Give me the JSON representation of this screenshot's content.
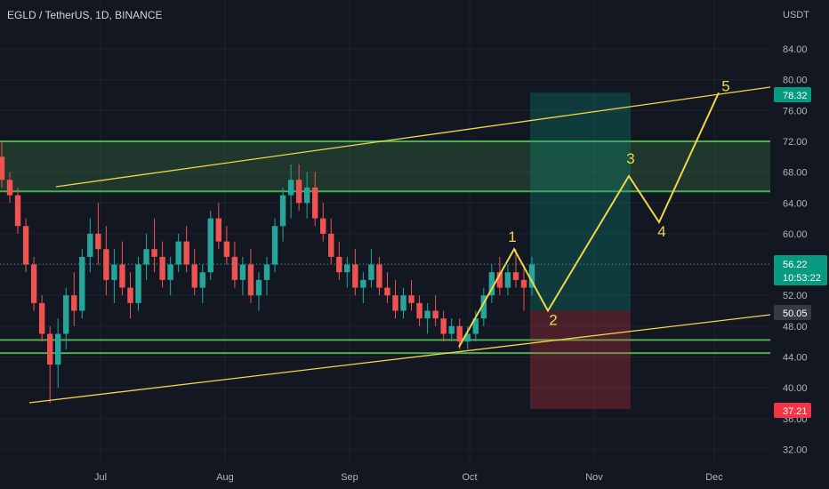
{
  "header": {
    "title": "EGLD / TetherUS, 1D, BINANCE"
  },
  "price_axis": {
    "currency": "USDT",
    "ticks": [
      "84.00",
      "80.00",
      "76.00",
      "72.00",
      "68.00",
      "64.00",
      "60.00",
      "56.00",
      "52.00",
      "48.00",
      "44.00",
      "40.00",
      "36.00",
      "32.00"
    ]
  },
  "time_axis": {
    "ticks": [
      "Jul",
      "Aug",
      "Sep",
      "Oct",
      "Nov",
      "Dec"
    ]
  },
  "price_tags": {
    "target": {
      "value": "78.32",
      "color": "#089981"
    },
    "current": {
      "value": "56.22",
      "countdown": "10:53:22",
      "color": "#089981"
    },
    "entry": {
      "value": "50.05",
      "color": "#363a45"
    },
    "stop": {
      "value": "37.21",
      "color": "#f23645"
    }
  },
  "colors": {
    "up": "#26a69a",
    "down": "#ef5350",
    "trendline": "#f0d64a",
    "zone": "#4caf50",
    "background": "#131722"
  },
  "chart_data": {
    "type": "candlestick",
    "symbol": "EGLD / TetherUS",
    "interval": "1D",
    "exchange": "BINANCE",
    "ylim": [
      30,
      88
    ],
    "ohlc_approx": [
      {
        "o": 70,
        "h": 72,
        "l": 66,
        "c": 67
      },
      {
        "o": 67,
        "h": 68,
        "l": 64,
        "c": 65
      },
      {
        "o": 65,
        "h": 66,
        "l": 60,
        "c": 61
      },
      {
        "o": 61,
        "h": 62,
        "l": 55,
        "c": 56
      },
      {
        "o": 56,
        "h": 57,
        "l": 50,
        "c": 51
      },
      {
        "o": 51,
        "h": 52,
        "l": 46,
        "c": 47
      },
      {
        "o": 47,
        "h": 48,
        "l": 38,
        "c": 43
      },
      {
        "o": 43,
        "h": 49,
        "l": 40,
        "c": 47
      },
      {
        "o": 47,
        "h": 53,
        "l": 45,
        "c": 52
      },
      {
        "o": 52,
        "h": 55,
        "l": 48,
        "c": 50
      },
      {
        "o": 50,
        "h": 58,
        "l": 49,
        "c": 57
      },
      {
        "o": 57,
        "h": 62,
        "l": 55,
        "c": 60
      },
      {
        "o": 60,
        "h": 64,
        "l": 56,
        "c": 58
      },
      {
        "o": 58,
        "h": 61,
        "l": 52,
        "c": 54
      },
      {
        "o": 54,
        "h": 58,
        "l": 51,
        "c": 56
      },
      {
        "o": 56,
        "h": 59,
        "l": 52,
        "c": 53
      },
      {
        "o": 53,
        "h": 55,
        "l": 49,
        "c": 51
      },
      {
        "o": 51,
        "h": 57,
        "l": 50,
        "c": 56
      },
      {
        "o": 56,
        "h": 60,
        "l": 54,
        "c": 58
      },
      {
        "o": 58,
        "h": 62,
        "l": 55,
        "c": 57
      },
      {
        "o": 57,
        "h": 59,
        "l": 53,
        "c": 54
      },
      {
        "o": 54,
        "h": 57,
        "l": 52,
        "c": 56
      },
      {
        "o": 56,
        "h": 60,
        "l": 55,
        "c": 59
      },
      {
        "o": 59,
        "h": 61,
        "l": 55,
        "c": 56
      },
      {
        "o": 56,
        "h": 58,
        "l": 52,
        "c": 53
      },
      {
        "o": 53,
        "h": 56,
        "l": 51,
        "c": 55
      },
      {
        "o": 55,
        "h": 63,
        "l": 54,
        "c": 62
      },
      {
        "o": 62,
        "h": 64,
        "l": 58,
        "c": 59
      },
      {
        "o": 59,
        "h": 61,
        "l": 56,
        "c": 57
      },
      {
        "o": 57,
        "h": 59,
        "l": 53,
        "c": 54
      },
      {
        "o": 54,
        "h": 57,
        "l": 52,
        "c": 56
      },
      {
        "o": 56,
        "h": 58,
        "l": 51,
        "c": 52
      },
      {
        "o": 52,
        "h": 55,
        "l": 50,
        "c": 54
      },
      {
        "o": 54,
        "h": 57,
        "l": 52,
        "c": 56
      },
      {
        "o": 56,
        "h": 62,
        "l": 55,
        "c": 61
      },
      {
        "o": 61,
        "h": 66,
        "l": 59,
        "c": 65
      },
      {
        "o": 65,
        "h": 69,
        "l": 62,
        "c": 67
      },
      {
        "o": 67,
        "h": 69,
        "l": 63,
        "c": 64
      },
      {
        "o": 64,
        "h": 68,
        "l": 62,
        "c": 66
      },
      {
        "o": 66,
        "h": 68,
        "l": 61,
        "c": 62
      },
      {
        "o": 62,
        "h": 64,
        "l": 59,
        "c": 60
      },
      {
        "o": 60,
        "h": 62,
        "l": 56,
        "c": 57
      },
      {
        "o": 57,
        "h": 59,
        "l": 54,
        "c": 55
      },
      {
        "o": 55,
        "h": 57,
        "l": 53,
        "c": 56
      },
      {
        "o": 56,
        "h": 58,
        "l": 52,
        "c": 53
      },
      {
        "o": 53,
        "h": 55,
        "l": 51,
        "c": 54
      },
      {
        "o": 54,
        "h": 58,
        "l": 53,
        "c": 56
      },
      {
        "o": 56,
        "h": 57,
        "l": 52,
        "c": 53
      },
      {
        "o": 53,
        "h": 55,
        "l": 51,
        "c": 52
      },
      {
        "o": 52,
        "h": 54,
        "l": 49,
        "c": 50
      },
      {
        "o": 50,
        "h": 53,
        "l": 49,
        "c": 52
      },
      {
        "o": 52,
        "h": 54,
        "l": 50,
        "c": 51
      },
      {
        "o": 51,
        "h": 52,
        "l": 48,
        "c": 49
      },
      {
        "o": 49,
        "h": 51,
        "l": 47,
        "c": 50
      },
      {
        "o": 50,
        "h": 52,
        "l": 48,
        "c": 49
      },
      {
        "o": 49,
        "h": 50,
        "l": 46,
        "c": 47
      },
      {
        "o": 47,
        "h": 49,
        "l": 46,
        "c": 48
      },
      {
        "o": 48,
        "h": 49,
        "l": 45,
        "c": 46
      },
      {
        "o": 46,
        "h": 48,
        "l": 45,
        "c": 47
      },
      {
        "o": 47,
        "h": 50,
        "l": 46,
        "c": 49
      },
      {
        "o": 49,
        "h": 53,
        "l": 48,
        "c": 52
      },
      {
        "o": 52,
        "h": 56,
        "l": 51,
        "c": 55
      },
      {
        "o": 55,
        "h": 57,
        "l": 52,
        "c": 53
      },
      {
        "o": 53,
        "h": 56,
        "l": 52,
        "c": 55
      },
      {
        "o": 55,
        "h": 58,
        "l": 53,
        "c": 54
      },
      {
        "o": 54,
        "h": 56,
        "l": 50,
        "c": 53
      },
      {
        "o": 53,
        "h": 57,
        "l": 52,
        "c": 56
      }
    ],
    "levels": {
      "resistance_zone": [
        65.5,
        72
      ],
      "support_zone": [
        44.5,
        46.2
      ]
    },
    "trendlines": [
      {
        "from": {
          "date": "Jun",
          "price": 66.5
        },
        "to": {
          "date": "Dec+",
          "price": 79
        }
      },
      {
        "from": {
          "date": "Jun",
          "price": 38.3
        },
        "to": {
          "date": "Dec+",
          "price": 49.5
        }
      }
    ],
    "position": {
      "entry": 50.05,
      "target": 78.32,
      "stop": 37.21
    },
    "wave_projection": [
      {
        "label": "",
        "price": 45.3
      },
      {
        "label": "1",
        "price": 58
      },
      {
        "label": "2",
        "price": 50
      },
      {
        "label": "3",
        "price": 67.5
      },
      {
        "label": "4",
        "price": 61.5
      },
      {
        "label": "5",
        "price": 78.32
      }
    ]
  }
}
